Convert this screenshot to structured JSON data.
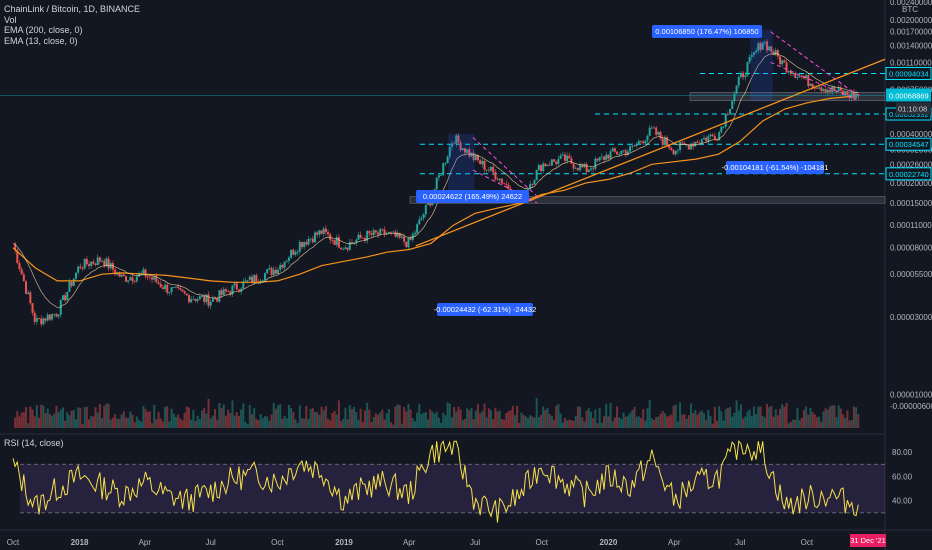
{
  "legend": {
    "title": "ChainLink / Bitcoin, 1D, BINANCE",
    "vol": "Vol",
    "ema200": "EMA (200, close, 0)",
    "ema13": "EMA (13, close, 0)"
  },
  "rsi": {
    "label": "RSI (14, close)"
  },
  "colors": {
    "background": "#131722",
    "candle_up": "#26a69a",
    "candle_down": "#ef5350",
    "ema200": "#f7931a",
    "ema13": "#f0ad4e",
    "level_line": "#00e5ff",
    "measure_box": "#2962ff",
    "rsi_line": "#f5e14a",
    "rsi_band": "#7e57c2",
    "current_price": "#00bcd4",
    "date_flag": "#e91e63"
  },
  "chart_data": [
    {
      "type": "candlestick",
      "title": "ChainLink / Bitcoin, 1D, BINANCE",
      "currency": "BTC",
      "y_scale": "log",
      "y_ticks": [
        "0.00200000",
        "0.00170000",
        "0.00140000",
        "0.00110000",
        "0.00075000",
        "0.00040000",
        "0.00032000",
        "0.00026000",
        "0.00020000",
        "0.00015000",
        "0.00011000",
        "0.00008000",
        "0.00005500",
        "0.00003000",
        "0.00001000",
        "-0.00000600"
      ],
      "y_top_label": "0.00240000",
      "x_ticks": [
        "Oct",
        "2018",
        "Apr",
        "Jul",
        "Oct",
        "2019",
        "Apr",
        "Jul",
        "Oct",
        "2020",
        "Apr",
        "Jul",
        "Oct",
        "2021"
      ],
      "levels": [
        "0.00094034",
        "0.00052992",
        "0.00034547",
        "0.00022740"
      ],
      "current_price": "0.00068869",
      "countdown": "01:10:08",
      "date_flag": "31 Dec '21",
      "measures": [
        {
          "label": "0.00024622 (165.49%) 24622"
        },
        {
          "label": "-0.00024432 (-62.31%) -24432"
        },
        {
          "label": "0.00106850 (176.47%) 106850"
        },
        {
          "label": "-0.00104181 (-61.54%) -104181"
        }
      ],
      "series": [
        {
          "name": "LINK/BTC close",
          "x": [
            "2017-10-01",
            "2017-11-01",
            "2017-12-01",
            "2018-01-01",
            "2018-02-01",
            "2018-03-01",
            "2018-04-01",
            "2018-05-01",
            "2018-06-01",
            "2018-07-01",
            "2018-08-01",
            "2018-09-01",
            "2018-10-01",
            "2018-11-01",
            "2018-12-01",
            "2019-01-01",
            "2019-02-01",
            "2019-03-01",
            "2019-04-01",
            "2019-05-01",
            "2019-06-01",
            "2019-07-01",
            "2019-08-01",
            "2019-09-01",
            "2019-10-01",
            "2019-11-01",
            "2019-12-01",
            "2020-01-01",
            "2020-02-01",
            "2020-03-01",
            "2020-04-01",
            "2020-05-01",
            "2020-06-01",
            "2020-07-01",
            "2020-08-01",
            "2020-09-01",
            "2020-10-01",
            "2020-11-01",
            "2020-12-01"
          ],
          "y": [
            8.5e-05,
            2.8e-05,
            3.2e-05,
            6.2e-05,
            6.8e-05,
            5.2e-05,
            5.5e-05,
            4.5e-05,
            4e-05,
            3.8e-05,
            4.5e-05,
            5.2e-05,
            6e-05,
            8.5e-05,
            0.0001,
            8.2e-05,
            9.5e-05,
            9.8e-05,
            8.5e-05,
            0.00016,
            0.00038,
            0.00028,
            0.00022,
            0.00016,
            0.00026,
            0.00028,
            0.00024,
            0.0003,
            0.00032,
            0.00042,
            0.00032,
            0.00036,
            0.0004,
            0.00088,
            0.0015,
            0.00105,
            0.00085,
            0.00075,
            0.00069
          ]
        },
        {
          "name": "EMA (200, close, 0)",
          "y": [
            8e-05,
            6e-05,
            5e-05,
            5e-05,
            5.5e-05,
            5.6e-05,
            5.5e-05,
            5.4e-05,
            5.2e-05,
            5e-05,
            4.9e-05,
            4.9e-05,
            5e-05,
            5.5e-05,
            6.2e-05,
            6.6e-05,
            7e-05,
            7.5e-05,
            7.8e-05,
            8.5e-05,
            0.00011,
            0.00013,
            0.00014,
            0.00015,
            0.00017,
            0.00018,
            0.0002,
            0.00021,
            0.00023,
            0.00026,
            0.00027,
            0.00028,
            0.0003,
            0.00036,
            0.00048,
            0.00057,
            0.00062,
            0.00066,
            0.00068
          ]
        }
      ]
    },
    {
      "type": "line",
      "title": "RSI (14, close)",
      "y_ticks": [
        "80.00",
        "60.00",
        "40.00"
      ],
      "ylim": [
        20,
        90
      ],
      "band": [
        30,
        70
      ],
      "series": [
        {
          "name": "RSI",
          "y": [
            70,
            35,
            50,
            60,
            52,
            45,
            55,
            44,
            40,
            48,
            58,
            62,
            55,
            72,
            65,
            40,
            52,
            55,
            45,
            80,
            85,
            40,
            30,
            45,
            70,
            55,
            45,
            60,
            52,
            75,
            40,
            55,
            60,
            88,
            80,
            35,
            42,
            45,
            38
          ]
        }
      ]
    }
  ]
}
